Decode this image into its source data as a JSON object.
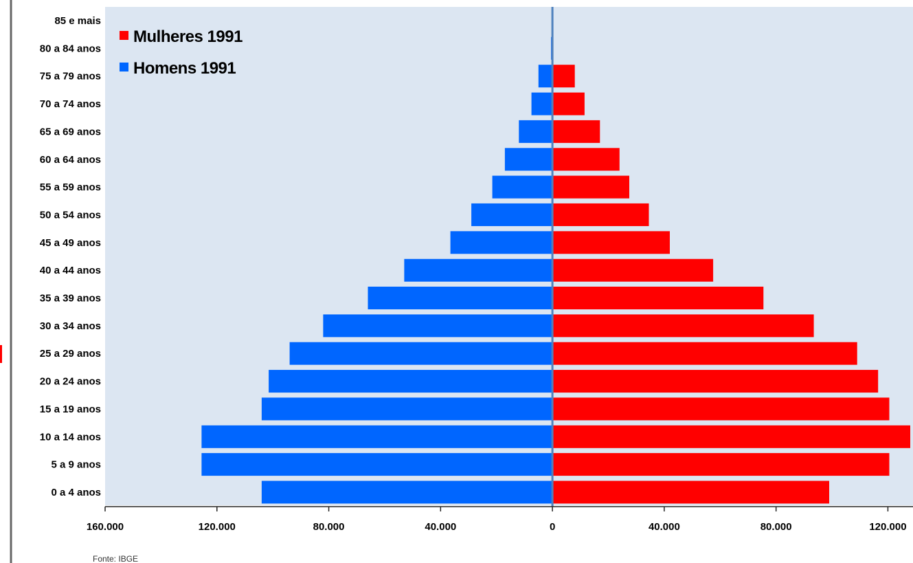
{
  "chart_data": {
    "type": "bar",
    "orientation": "horizontal",
    "layout": "population-pyramid",
    "categories": [
      "85 e mais",
      "80 a 84 anos",
      "75 a 79 anos",
      "70 a 74 anos",
      "65 a 69 anos",
      "60 a 64 anos",
      "55 a 59 anos",
      "50 a 54 anos",
      "45 a 49 anos",
      "40 a 44 anos",
      "35 a 39 anos",
      "30 a 34 anos",
      "25 a 29 anos",
      "20 a 24 anos",
      "15 a 19 anos",
      "10 a 14 anos",
      "5 a 9 anos",
      "0 a 4 anos"
    ],
    "series": [
      {
        "name": "Mulheres 1991",
        "color": "#ff0000",
        "side": "right",
        "values": [
          0,
          0,
          8000,
          11500,
          17000,
          24000,
          27500,
          34500,
          42000,
          57500,
          75500,
          93500,
          109000,
          116500,
          120500,
          128000,
          120500,
          99000
        ]
      },
      {
        "name": "Homens 1991",
        "color": "#0066ff",
        "side": "left",
        "values": [
          0,
          500,
          5000,
          7500,
          12000,
          17000,
          21500,
          29000,
          36500,
          53000,
          66000,
          82000,
          94000,
          101500,
          104000,
          125500,
          125500,
          104000
        ]
      }
    ],
    "xlim": [
      -160000,
      128000
    ],
    "x_ticks": [
      {
        "value": -160000,
        "label": "160.000"
      },
      {
        "value": -120000,
        "label": "120.000"
      },
      {
        "value": -80000,
        "label": "80.000"
      },
      {
        "value": -40000,
        "label": "40.000"
      },
      {
        "value": 0,
        "label": "0"
      },
      {
        "value": 40000,
        "label": "40.000"
      },
      {
        "value": 80000,
        "label": "80.000"
      },
      {
        "value": 120000,
        "label": "120.000"
      }
    ],
    "plot_background": "#dce6f2",
    "legend_position": "top-left",
    "source": "Fonte: IBGE"
  }
}
